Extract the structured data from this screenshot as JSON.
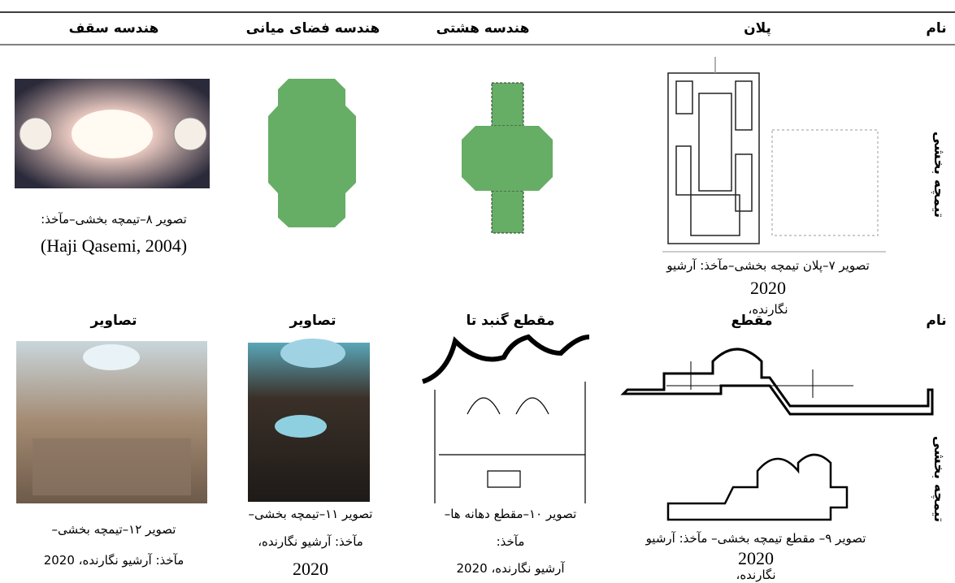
{
  "table": {
    "row1": {
      "headers": [
        "نام",
        "پلان",
        "هندسه هشتی",
        "هندسه فضای میانی",
        "هندسه سقف"
      ],
      "side_label": "تیمچه بخشی",
      "plan_caption": [
        "تصویر ۷–پلان تیمچه بخشی–مآخذ: آرشیو",
        "2020",
        "نگارنده،"
      ],
      "ceiling_caption": [
        "تصویر ۸–تیمچه بخشی–مآخذ:",
        "(Haji Qasemi, 2004)"
      ]
    },
    "row2": {
      "headers": [
        "نام",
        "مقطع",
        "مقطع گنبد تا",
        "تصاویر",
        "تصاویر"
      ],
      "side_label": "تیمچه بخشی",
      "section_caption": [
        "تصویر ۹– مقطع تیمچه بخشی– مآخذ: آرشیو",
        "2020",
        "نگارنده،"
      ],
      "dome_caption": [
        "تصویر ۱۰–مقطع دهانه ها–",
        "مآخذ:",
        "آرشیو نگارنده، 2020"
      ],
      "photo1_caption": [
        "تصویر ۱۱–تیمچه بخشی–",
        "مآخذ: آرشیو نگارنده،",
        "2020"
      ],
      "photo2_caption": [
        "تصویر ۱۲–تیمچه بخشی–",
        "مآخذ: آرشیو نگارنده، 2020"
      ]
    }
  }
}
